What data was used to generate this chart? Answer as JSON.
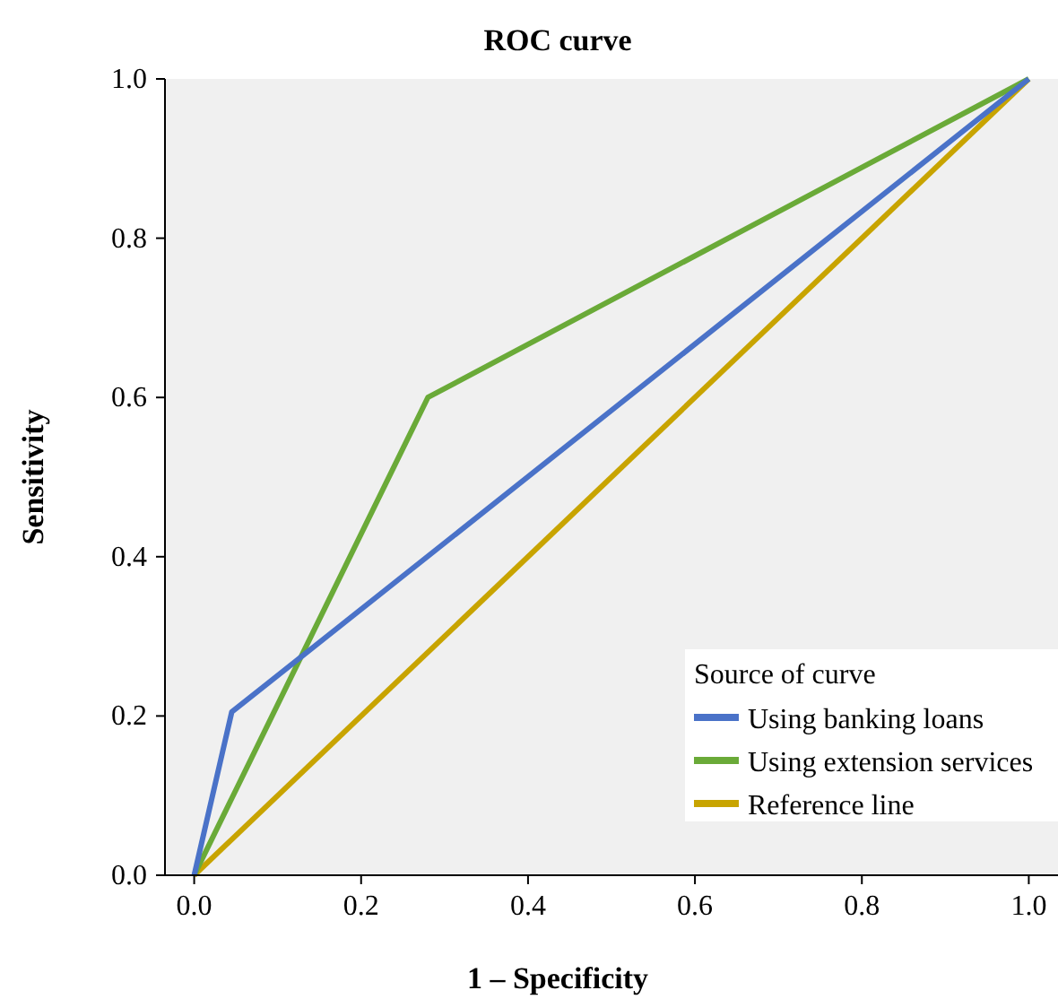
{
  "chart_data": {
    "type": "line",
    "title": "ROC curve",
    "xlabel": "1 – Specificity",
    "ylabel": "Sensitivity",
    "legend_title": "Source of curve",
    "legend": "bottom right",
    "grid": false,
    "marker": "none",
    "line_style": "solid",
    "xlim": [
      -0.035,
      1.035
    ],
    "ylim": [
      0,
      1
    ],
    "xticks": [
      {
        "value": 0,
        "label": "0.0"
      },
      0.2,
      0.4,
      0.6,
      0.8,
      {
        "value": 1,
        "label": "1.0"
      }
    ],
    "yticks": [
      {
        "value": 0,
        "label": "0.0"
      },
      0.2,
      0.4,
      0.6,
      0.8,
      {
        "value": 1,
        "label": "1.0"
      }
    ],
    "series": [
      {
        "name": "Using banking loans",
        "color": "#4a72c8",
        "x": [
          0,
          0.045,
          1
        ],
        "values": [
          0,
          0.205,
          1
        ]
      },
      {
        "name": "Using extension services",
        "color": "#6aaa38",
        "x": [
          0,
          0.28,
          1
        ],
        "values": [
          0,
          0.6,
          1
        ]
      },
      {
        "name": "Reference line",
        "color": "#c8a400",
        "x": [
          0,
          1
        ],
        "values": [
          0,
          1
        ]
      }
    ]
  }
}
